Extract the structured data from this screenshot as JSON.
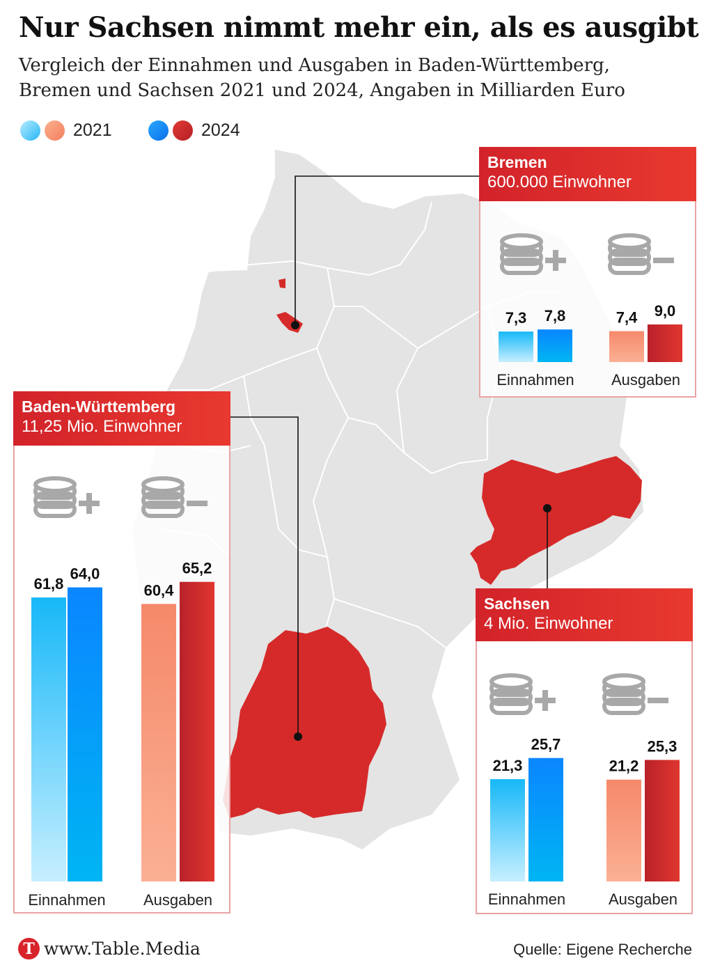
{
  "title": "Nur Sachsen nimmt mehr ein, als es ausgibt",
  "subtitle": "Vergleich der Einnahmen und Ausgaben in Baden-Württemberg, Bremen und Sachsen 2021 und 2024, Angaben in Milliarden Euro",
  "legend": [
    {
      "label": "2021",
      "colors": [
        "#7fd8fb",
        "#f9a27a"
      ]
    },
    {
      "label": "2024",
      "colors": [
        "#0a8bff",
        "#c4232b"
      ]
    }
  ],
  "colors": {
    "map_land": "#e4e4e4",
    "highlight": "#d82a2a",
    "panel_border": "#e9a3a3",
    "icon_gray": "#a8a8a8"
  },
  "icons": {
    "income": "coins-plus-icon",
    "expense": "coins-minus-icon"
  },
  "chart_data": [
    {
      "type": "bar",
      "region": "Baden-Württemberg",
      "population": "11,25 Mio. Einwohner",
      "categories": [
        "Einnahmen",
        "Ausgaben"
      ],
      "series": [
        {
          "name": "2021",
          "values": [
            61.8,
            60.4
          ],
          "labels": [
            "61,8",
            "60,4"
          ]
        },
        {
          "name": "2024",
          "values": [
            64.0,
            65.2
          ],
          "labels": [
            "64,0",
            "65,2"
          ]
        }
      ]
    },
    {
      "type": "bar",
      "region": "Bremen",
      "population": "600.000 Einwohner",
      "categories": [
        "Einnahmen",
        "Ausgaben"
      ],
      "series": [
        {
          "name": "2021",
          "values": [
            7.3,
            7.4
          ],
          "labels": [
            "7,3",
            "7,4"
          ]
        },
        {
          "name": "2024",
          "values": [
            7.8,
            9.0
          ],
          "labels": [
            "7,8",
            "9,0"
          ]
        }
      ]
    },
    {
      "type": "bar",
      "region": "Sachsen",
      "population": "4 Mio. Einwohner",
      "categories": [
        "Einnahmen",
        "Ausgaben"
      ],
      "series": [
        {
          "name": "2021",
          "values": [
            21.3,
            21.2
          ],
          "labels": [
            "21,3",
            "21,2"
          ]
        },
        {
          "name": "2024",
          "values": [
            25.7,
            25.3
          ],
          "labels": [
            "25,7",
            "25,3"
          ]
        }
      ]
    }
  ],
  "footer": {
    "logo_letter": "T",
    "site": "www.Table.Media",
    "source": "Quelle: Eigene Recherche"
  }
}
